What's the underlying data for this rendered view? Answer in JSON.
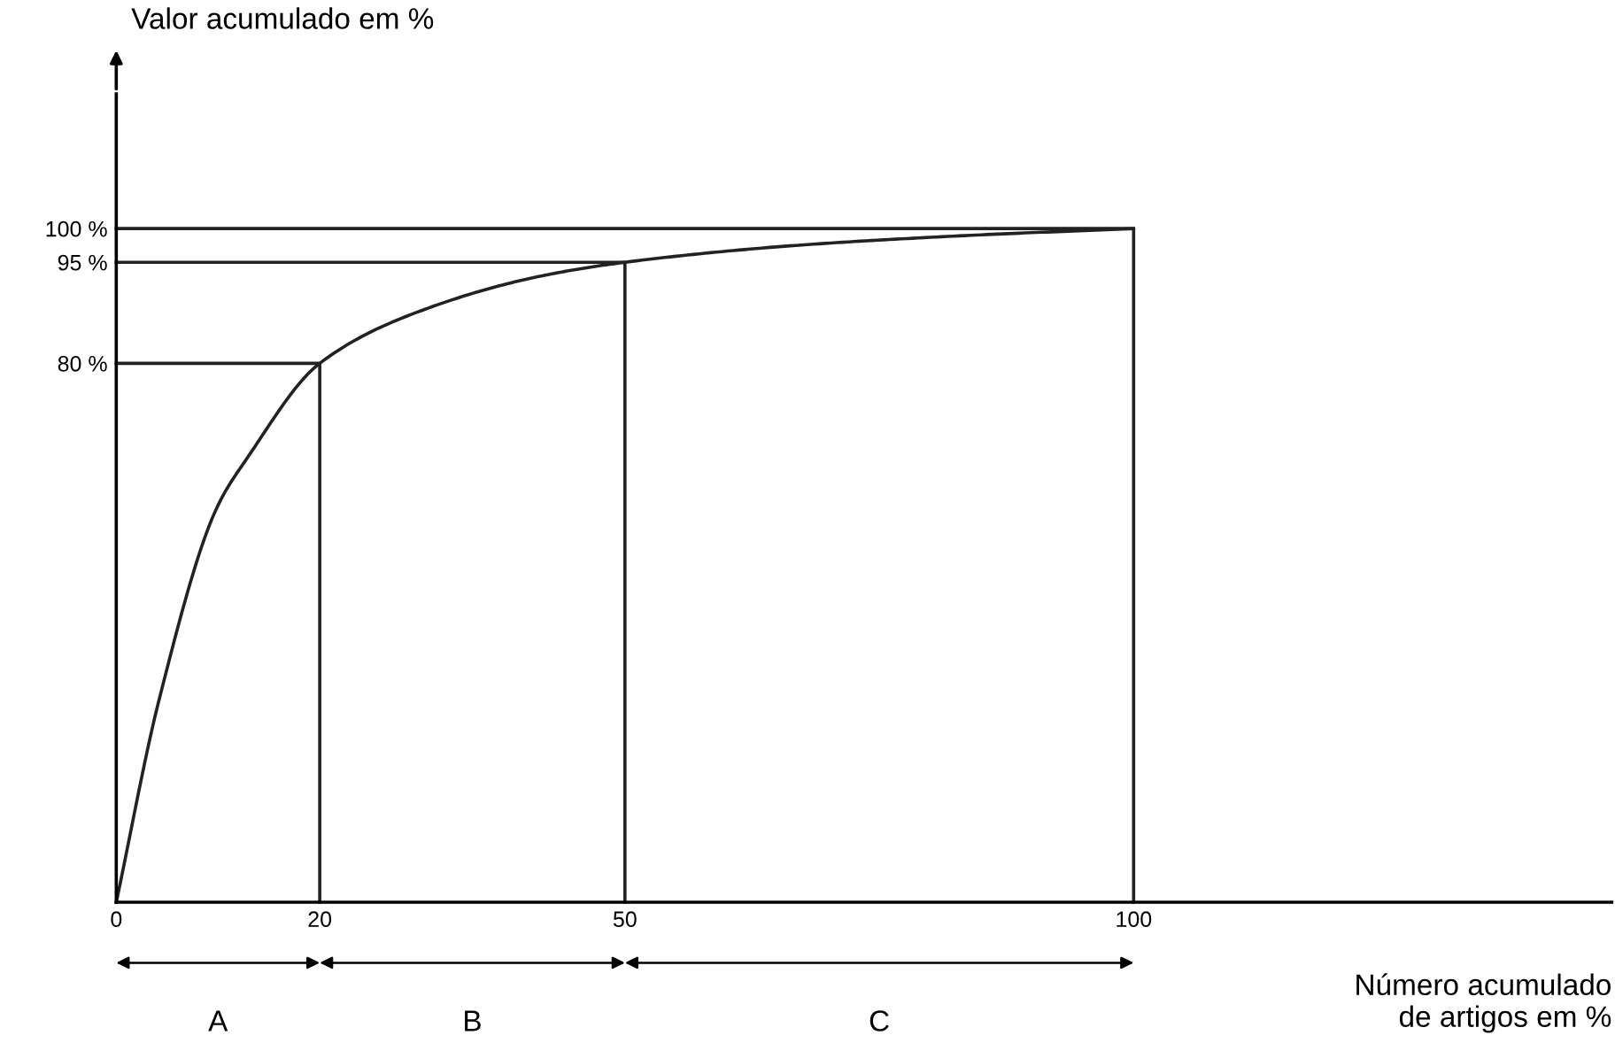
{
  "chart_data": {
    "type": "line",
    "ylabel": "Valor acumulado em %",
    "xlabel": "Número acumulado\nde artigos em %",
    "series": [
      {
        "color": "#222222",
        "x": [
          0,
          4.2,
          9.9,
          12.9,
          20,
          30.3,
          41.9,
          50,
          66.8,
          84,
          100
        ],
        "values": [
          0,
          30,
          58.6,
          66,
          80,
          88,
          93,
          95,
          97.5,
          99,
          100
        ]
      },
      {
        "color": "#222222",
        "x": [
          0,
          20,
          20
        ],
        "values": [
          80,
          80,
          0
        ]
      },
      {
        "color": "#222222",
        "x": [
          0,
          50,
          50
        ],
        "values": [
          95,
          95,
          0
        ]
      },
      {
        "color": "#222222",
        "x": [
          0,
          100,
          100
        ],
        "values": [
          100,
          100,
          0
        ]
      }
    ],
    "annotations": [
      "A",
      "B",
      "C"
    ],
    "xlim": [
      0,
      147
    ],
    "ylim": [
      0,
      120
    ],
    "xticks": [
      0,
      20,
      50,
      100
    ],
    "yticks": [
      {
        "value": 80,
        "label": "80 %"
      },
      {
        "value": 95,
        "label": "95 %"
      },
      {
        "value": 100,
        "label": "100 %"
      }
    ],
    "grid": false,
    "legend": false,
    "marker": "none",
    "line_style": "solid"
  }
}
